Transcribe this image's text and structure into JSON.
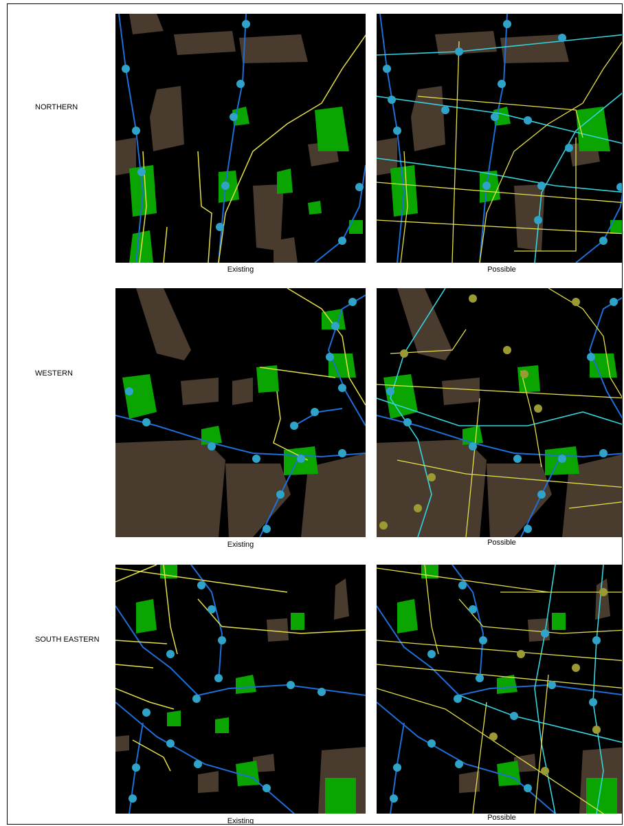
{
  "rows": [
    {
      "label": "NORTHERN",
      "captions": [
        "Existing",
        "Possible"
      ]
    },
    {
      "label": "WESTERN",
      "captions": [
        "Existing",
        "Possible"
      ]
    },
    {
      "label": "SOUTH EASTERN",
      "captions": [
        "Existing",
        "Possible"
      ]
    }
  ],
  "legend_colors": {
    "land_parcel": "#4a3b2f",
    "green_space": "#0aa500",
    "existing_route": "#1e6fd9",
    "proposed_route": "#35d5e0",
    "cycle_route": "#e6e04a",
    "station": "#2fa3c8",
    "proposed_station": "#9c9a33",
    "background": "#000000"
  }
}
